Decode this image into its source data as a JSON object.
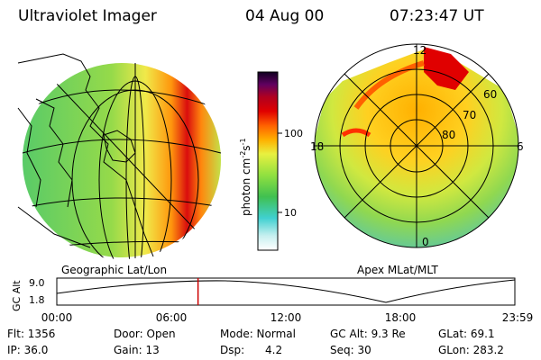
{
  "header": {
    "instrument": "Ultraviolet Imager",
    "date": "04 Aug 00",
    "time": "07:23:47 UT"
  },
  "left_panel": {
    "label": "Geographic Lat/Lon"
  },
  "right_panel": {
    "label": "Apex MLat/MLT",
    "mlt_labels": [
      "12",
      "18",
      "6",
      "0"
    ],
    "mlat_labels": [
      "60",
      "70",
      "80"
    ]
  },
  "colorbar": {
    "unit_label": "photon cm",
    "unit_exp1": "-2",
    "unit_s": "s",
    "unit_exp2": "-1",
    "ticks": [
      "100",
      "10"
    ]
  },
  "altitude_plot": {
    "ylabel": "GC Alt",
    "yticks": [
      "9.0",
      "1.8"
    ],
    "xticks": [
      "00:00",
      "06:00",
      "12:00",
      "18:00",
      "23:59"
    ],
    "current_time_hours": 7.4,
    "marker_color": "#cc0000"
  },
  "info": {
    "row1": {
      "flt": "Flt: 1356",
      "door": "Door: Open",
      "mode": "Mode: Normal",
      "gcalt": "GC Alt: 9.3 Re",
      "glat": "GLat:  69.1"
    },
    "row2": {
      "ip": "IP: 36.0",
      "gain": "Gain: 13",
      "dsp": "Dsp:      4.2",
      "seq": "Seq: 30",
      "glon": "GLon: 283.2"
    }
  }
}
